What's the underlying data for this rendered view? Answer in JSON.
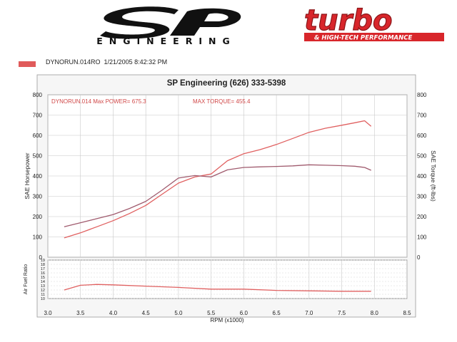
{
  "header": {
    "brand_letters": "SP",
    "brand_word": "ENGINEERING",
    "magazine_logo": "turbo",
    "magazine_tagline": "& HIGH-TECH PERFORMANCE"
  },
  "legend": {
    "run_file": "DYNORUN.014RO",
    "date_time": "1/21/2005 8:42:32 PM",
    "swatch_color": "#e05a5a"
  },
  "chart_data": {
    "type": "line",
    "title": "SP Engineering (626) 333-5398",
    "annotation_power": "DYNORUN.014  Max POWER= 675.3",
    "annotation_torque": "MAX TORQUE= 455.4",
    "xlabel": "RPM (x1000)",
    "ylabel_left": "SAE Horsepower",
    "ylabel_right": "SAE Torque (ft-lbs)",
    "ylabel_afr": "Air Fuel Ratio",
    "xlim": [
      3.0,
      8.5
    ],
    "ylim": [
      0,
      800
    ],
    "afr_ylim": [
      10,
      19
    ],
    "grid": true,
    "x_ticks": [
      "3.0",
      "3.5",
      "4.0",
      "4.5",
      "5.0",
      "5.5",
      "6.0",
      "6.5",
      "7.0",
      "7.5",
      "8.0",
      "8.5"
    ],
    "y_ticks_left": [
      "0",
      "100",
      "200",
      "300",
      "400",
      "500",
      "600",
      "700",
      "800"
    ],
    "y_ticks_right": [
      "0",
      "100",
      "200",
      "300",
      "400",
      "500",
      "600",
      "700",
      "800"
    ],
    "afr_ticks": [
      "10",
      "11",
      "12",
      "13",
      "14",
      "15",
      "16",
      "17",
      "18",
      "19"
    ],
    "series": [
      {
        "name": "Power",
        "color": "#e06060",
        "x": [
          3.25,
          3.5,
          3.75,
          4.0,
          4.25,
          4.5,
          4.75,
          5.0,
          5.25,
          5.5,
          5.75,
          6.0,
          6.25,
          6.5,
          6.75,
          7.0,
          7.25,
          7.5,
          7.7,
          7.85,
          7.95
        ],
        "y": [
          95,
          120,
          150,
          180,
          215,
          255,
          310,
          365,
          395,
          410,
          475,
          510,
          530,
          555,
          585,
          615,
          635,
          650,
          662,
          672,
          645
        ]
      },
      {
        "name": "Torque",
        "color": "#a05b6e",
        "x": [
          3.25,
          3.5,
          3.75,
          4.0,
          4.25,
          4.5,
          4.75,
          5.0,
          5.25,
          5.5,
          5.75,
          6.0,
          6.25,
          6.5,
          6.75,
          7.0,
          7.25,
          7.5,
          7.7,
          7.85,
          7.95
        ],
        "y": [
          150,
          170,
          190,
          210,
          240,
          275,
          330,
          390,
          402,
          395,
          430,
          442,
          445,
          447,
          450,
          455,
          453,
          451,
          448,
          442,
          428
        ]
      },
      {
        "name": "Air Fuel Ratio",
        "color": "#e06060",
        "x": [
          3.25,
          3.5,
          3.75,
          4.0,
          4.5,
          5.0,
          5.5,
          6.0,
          6.5,
          7.0,
          7.5,
          7.95
        ],
        "y": [
          12.0,
          13.1,
          13.3,
          13.2,
          12.9,
          12.6,
          12.2,
          12.2,
          11.9,
          11.8,
          11.7,
          11.7
        ]
      }
    ]
  }
}
